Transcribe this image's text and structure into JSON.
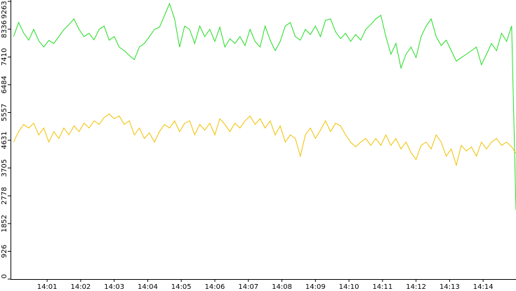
{
  "chart_data": {
    "type": "line",
    "x": [
      840,
      840.15,
      840.3,
      840.45,
      840.6,
      840.75,
      840.9,
      841.05,
      841.2,
      841.35,
      841.5,
      841.65,
      841.8,
      841.95,
      842.1,
      842.25,
      842.4,
      842.55,
      842.7,
      842.85,
      843,
      843.15,
      843.3,
      843.45,
      843.6,
      843.75,
      843.9,
      844.05,
      844.2,
      844.35,
      844.5,
      844.65,
      844.8,
      844.95,
      845.1,
      845.25,
      845.4,
      845.55,
      845.7,
      845.85,
      846,
      846.15,
      846.3,
      846.45,
      846.6,
      846.75,
      846.9,
      847.05,
      847.2,
      847.35,
      847.5,
      847.65,
      847.8,
      847.95,
      848.1,
      848.25,
      848.4,
      848.55,
      848.7,
      848.85,
      849,
      849.15,
      849.3,
      849.45,
      849.6,
      849.75,
      849.9,
      850.05,
      850.2,
      850.35,
      850.5,
      850.65,
      850.8,
      850.95,
      851.1,
      851.25,
      851.4,
      851.55,
      851.7,
      851.85,
      852,
      852.15,
      852.3,
      852.45,
      852.6,
      852.75,
      852.9,
      853.05,
      853.2,
      853.35,
      853.5,
      853.65,
      853.8,
      853.95,
      854.1,
      854.25,
      854.4,
      854.55,
      854.7,
      854.85,
      854.98
    ],
    "series": [
      {
        "color": "#22dd22",
        "values": [
          8090,
          8560,
          8210,
          7970,
          8330,
          7950,
          7740,
          7960,
          7860,
          8090,
          8320,
          8490,
          8680,
          8330,
          8090,
          8200,
          7980,
          8330,
          8440,
          7970,
          8090,
          7740,
          7620,
          7460,
          7320,
          7740,
          7860,
          8090,
          8330,
          8400,
          8800,
          9190,
          8680,
          7740,
          8440,
          8330,
          7860,
          8440,
          8090,
          8330,
          7930,
          8400,
          7740,
          8020,
          7860,
          8090,
          7790,
          8330,
          7930,
          7740,
          8440,
          7970,
          7620,
          7930,
          8440,
          8560,
          8090,
          7970,
          8330,
          8160,
          8440,
          8090,
          8630,
          8680,
          8250,
          8020,
          8200,
          7930,
          8160,
          7970,
          8330,
          8490,
          8680,
          8800,
          8090,
          7500,
          7860,
          7040,
          7500,
          7740,
          7390,
          8090,
          8440,
          8680,
          8090,
          7790,
          7970,
          7620,
          7270,
          7390,
          7500,
          7620,
          7740,
          7150,
          7500,
          7860,
          7620,
          8200,
          7930,
          8440,
          2300
        ]
      },
      {
        "color": "#f0c000",
        "values": [
          4570,
          4920,
          5160,
          5040,
          5200,
          4810,
          5040,
          4570,
          4920,
          4690,
          5040,
          4810,
          5110,
          4920,
          5200,
          5040,
          5280,
          5160,
          5390,
          5510,
          5350,
          5440,
          5160,
          5280,
          4810,
          5040,
          4690,
          4880,
          4570,
          4920,
          5160,
          5040,
          5280,
          4920,
          5200,
          5280,
          4810,
          5160,
          4970,
          5200,
          4810,
          5350,
          5160,
          4920,
          5200,
          5040,
          5280,
          5440,
          5160,
          5350,
          5040,
          5280,
          4810,
          5110,
          4570,
          4810,
          4690,
          4100,
          4810,
          5040,
          4690,
          4970,
          5280,
          4920,
          5200,
          5110,
          4810,
          4570,
          4410,
          4570,
          4690,
          4460,
          4690,
          4460,
          4810,
          4460,
          4690,
          4340,
          4570,
          4220,
          3990,
          4460,
          4570,
          4340,
          4810,
          4570,
          4100,
          4340,
          3800,
          4460,
          4270,
          4410,
          4100,
          4570,
          4340,
          4570,
          4690,
          4460,
          4570,
          4410,
          4200
        ]
      }
    ],
    "xlim": [
      839.93,
      854.98
    ],
    "xticks": [
      {
        "value": 841,
        "label": "14:01"
      },
      {
        "value": 842,
        "label": "14:02"
      },
      {
        "value": 843,
        "label": "14:03"
      },
      {
        "value": 844,
        "label": "14:04"
      },
      {
        "value": 845,
        "label": "14:05"
      },
      {
        "value": 846,
        "label": "14:06"
      },
      {
        "value": 847,
        "label": "14:07"
      },
      {
        "value": 848,
        "label": "14:08"
      },
      {
        "value": 849,
        "label": "14:09"
      },
      {
        "value": 850,
        "label": "14:10"
      },
      {
        "value": 851,
        "label": "14:11"
      },
      {
        "value": 852,
        "label": "14:12"
      },
      {
        "value": 853,
        "label": "14:13"
      },
      {
        "value": 854,
        "label": "14:14"
      }
    ],
    "ylim": [
      0,
      9263
    ],
    "yticks": [
      0,
      926,
      1852,
      2778,
      3705,
      4631,
      5557,
      6484,
      7410,
      8336,
      9263
    ]
  }
}
